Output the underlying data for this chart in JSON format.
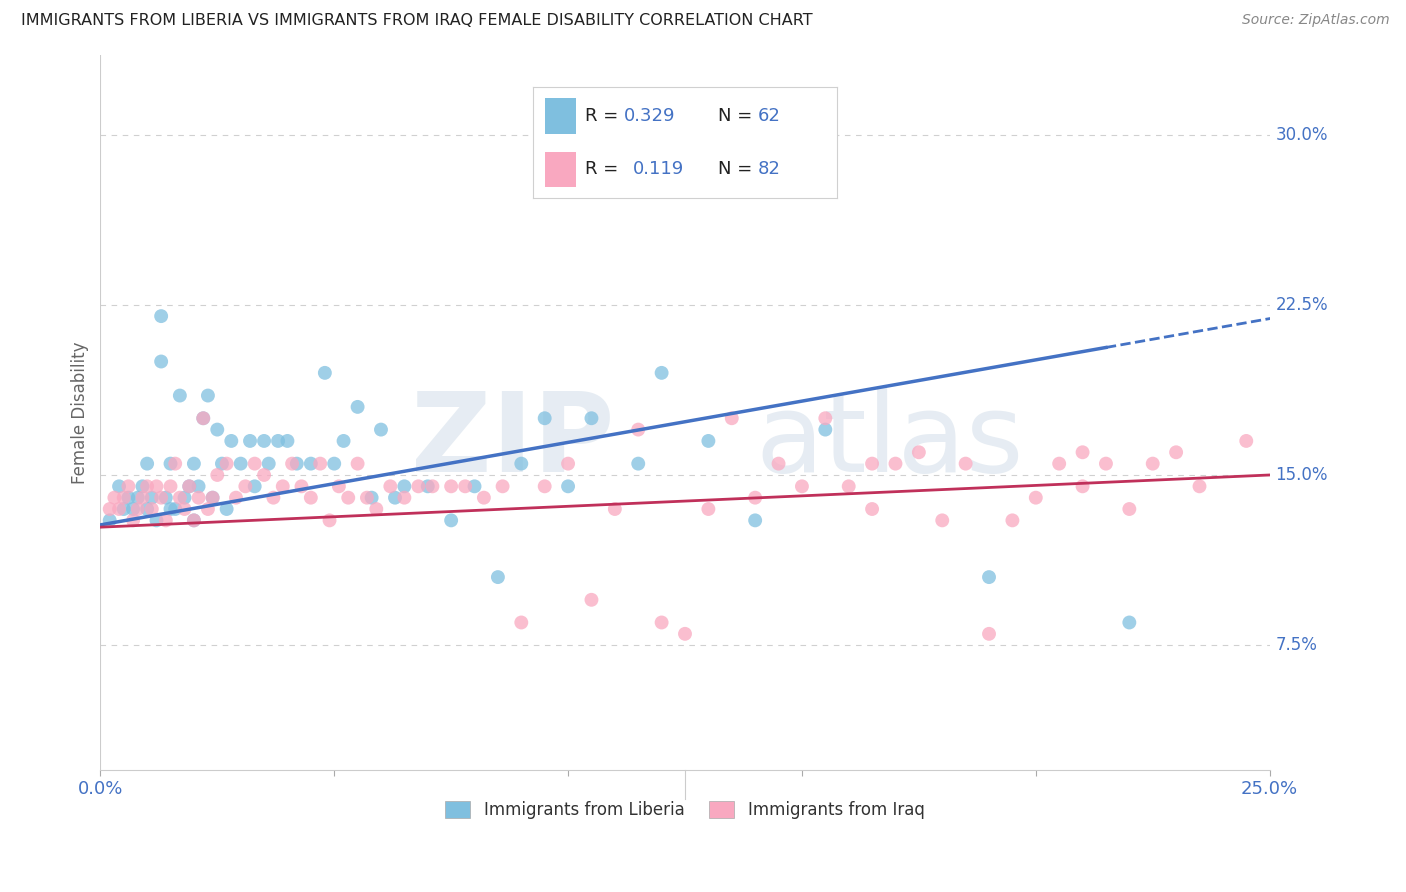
{
  "title": "IMMIGRANTS FROM LIBERIA VS IMMIGRANTS FROM IRAQ FEMALE DISABILITY CORRELATION CHART",
  "source": "Source: ZipAtlas.com",
  "ylabel": "Female Disability",
  "ytick_labels": [
    "7.5%",
    "15.0%",
    "22.5%",
    "30.0%"
  ],
  "ytick_values": [
    0.075,
    0.15,
    0.225,
    0.3
  ],
  "xlim": [
    0.0,
    0.25
  ],
  "ylim": [
    0.02,
    0.335
  ],
  "color_blue": "#7fbfdf",
  "color_pink": "#f9a8c0",
  "color_line_blue": "#4472c4",
  "color_line_pink": "#c0305a",
  "background_color": "#ffffff",
  "grid_color": "#d0d0d0",
  "title_color": "#222222",
  "axis_label_color": "#4472c4",
  "legend_text_color": "#222222",
  "liberia_x": [
    0.002,
    0.004,
    0.005,
    0.006,
    0.007,
    0.008,
    0.009,
    0.01,
    0.01,
    0.011,
    0.012,
    0.013,
    0.013,
    0.014,
    0.015,
    0.015,
    0.016,
    0.017,
    0.018,
    0.019,
    0.02,
    0.02,
    0.021,
    0.022,
    0.023,
    0.024,
    0.025,
    0.026,
    0.027,
    0.028,
    0.03,
    0.032,
    0.033,
    0.035,
    0.036,
    0.038,
    0.04,
    0.042,
    0.045,
    0.048,
    0.05,
    0.052,
    0.055,
    0.058,
    0.06,
    0.063,
    0.065,
    0.07,
    0.075,
    0.08,
    0.085,
    0.09,
    0.095,
    0.1,
    0.105,
    0.115,
    0.12,
    0.13,
    0.14,
    0.155,
    0.19,
    0.22
  ],
  "liberia_y": [
    0.13,
    0.145,
    0.135,
    0.14,
    0.135,
    0.14,
    0.145,
    0.155,
    0.135,
    0.14,
    0.13,
    0.22,
    0.2,
    0.14,
    0.155,
    0.135,
    0.135,
    0.185,
    0.14,
    0.145,
    0.155,
    0.13,
    0.145,
    0.175,
    0.185,
    0.14,
    0.17,
    0.155,
    0.135,
    0.165,
    0.155,
    0.165,
    0.145,
    0.165,
    0.155,
    0.165,
    0.165,
    0.155,
    0.155,
    0.195,
    0.155,
    0.165,
    0.18,
    0.14,
    0.17,
    0.14,
    0.145,
    0.145,
    0.13,
    0.145,
    0.105,
    0.155,
    0.175,
    0.145,
    0.175,
    0.155,
    0.195,
    0.165,
    0.13,
    0.17,
    0.105,
    0.085
  ],
  "iraq_x": [
    0.002,
    0.003,
    0.004,
    0.005,
    0.006,
    0.007,
    0.008,
    0.009,
    0.01,
    0.011,
    0.012,
    0.013,
    0.014,
    0.015,
    0.016,
    0.017,
    0.018,
    0.019,
    0.02,
    0.021,
    0.022,
    0.023,
    0.024,
    0.025,
    0.027,
    0.029,
    0.031,
    0.033,
    0.035,
    0.037,
    0.039,
    0.041,
    0.043,
    0.045,
    0.047,
    0.049,
    0.051,
    0.053,
    0.055,
    0.057,
    0.059,
    0.062,
    0.065,
    0.068,
    0.071,
    0.075,
    0.078,
    0.082,
    0.086,
    0.09,
    0.095,
    0.1,
    0.105,
    0.11,
    0.115,
    0.12,
    0.125,
    0.13,
    0.135,
    0.14,
    0.145,
    0.15,
    0.155,
    0.16,
    0.165,
    0.17,
    0.175,
    0.18,
    0.185,
    0.19,
    0.195,
    0.2,
    0.205,
    0.21,
    0.215,
    0.22,
    0.225,
    0.23,
    0.235,
    0.245,
    0.21,
    0.165
  ],
  "iraq_y": [
    0.135,
    0.14,
    0.135,
    0.14,
    0.145,
    0.13,
    0.135,
    0.14,
    0.145,
    0.135,
    0.145,
    0.14,
    0.13,
    0.145,
    0.155,
    0.14,
    0.135,
    0.145,
    0.13,
    0.14,
    0.175,
    0.135,
    0.14,
    0.15,
    0.155,
    0.14,
    0.145,
    0.155,
    0.15,
    0.14,
    0.145,
    0.155,
    0.145,
    0.14,
    0.155,
    0.13,
    0.145,
    0.14,
    0.155,
    0.14,
    0.135,
    0.145,
    0.14,
    0.145,
    0.145,
    0.145,
    0.145,
    0.14,
    0.145,
    0.085,
    0.145,
    0.155,
    0.095,
    0.135,
    0.17,
    0.085,
    0.08,
    0.135,
    0.175,
    0.14,
    0.155,
    0.145,
    0.175,
    0.145,
    0.135,
    0.155,
    0.16,
    0.13,
    0.155,
    0.08,
    0.13,
    0.14,
    0.155,
    0.145,
    0.155,
    0.135,
    0.155,
    0.16,
    0.145,
    0.165,
    0.16,
    0.155
  ]
}
